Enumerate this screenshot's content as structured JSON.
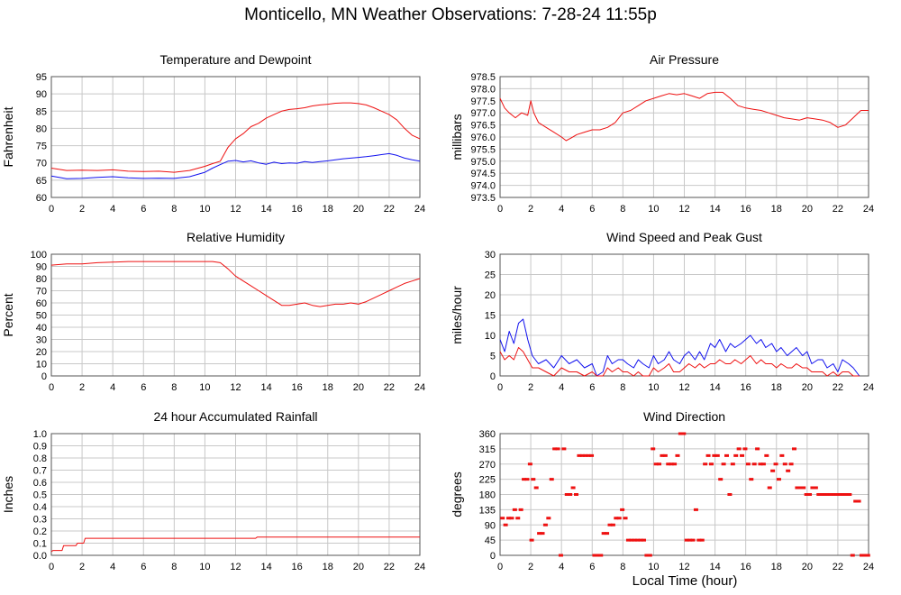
{
  "page": {
    "title": "Monticello, MN Weather Observations: 7-28-24 11:55p",
    "x_axis_label": "Local Time (hour)"
  },
  "colors": {
    "red": "#ee1111",
    "blue": "#1111ee",
    "grid": "#c8c8c8",
    "frame": "#555555"
  },
  "chart_data": [
    {
      "id": "temp",
      "type": "line",
      "title": "Temperature and Dewpoint",
      "xlabel": "",
      "ylabel": "Fahrenheit",
      "xlim": [
        0,
        24
      ],
      "ylim": [
        60,
        95
      ],
      "yticks": [
        60,
        65,
        70,
        75,
        80,
        85,
        90,
        95
      ],
      "xticks": [
        0,
        2,
        4,
        6,
        8,
        10,
        12,
        14,
        16,
        18,
        20,
        22,
        24
      ],
      "series": [
        {
          "color": "red",
          "x": [
            0,
            1,
            2,
            3,
            4,
            5,
            6,
            7,
            8,
            9,
            10,
            10.5,
            11,
            11.5,
            12,
            12.5,
            13,
            13.5,
            14,
            14.5,
            15,
            15.5,
            16,
            16.5,
            17,
            17.5,
            18,
            18.5,
            19,
            19.5,
            20,
            20.5,
            21,
            21.5,
            22,
            22.5,
            23,
            23.5,
            24
          ],
          "y": [
            68.5,
            67.8,
            67.9,
            67.8,
            68,
            67.6,
            67.5,
            67.6,
            67.3,
            67.8,
            69,
            69.8,
            70.5,
            74.5,
            77,
            78.5,
            80.5,
            81.5,
            83,
            84,
            85,
            85.5,
            85.7,
            86,
            86.5,
            86.8,
            87,
            87.3,
            87.4,
            87.4,
            87.2,
            86.8,
            86,
            85,
            84,
            82.5,
            80,
            78,
            77
          ]
        },
        {
          "color": "blue",
          "x": [
            0,
            1,
            2,
            3,
            4,
            5,
            6,
            7,
            8,
            9,
            10,
            10.5,
            11,
            11.5,
            12,
            12.5,
            13,
            13.5,
            14,
            14.5,
            15,
            15.5,
            16,
            16.5,
            17,
            17.5,
            18,
            18.5,
            19,
            19.5,
            20,
            20.5,
            21,
            21.5,
            22,
            22.5,
            23,
            23.5,
            24
          ],
          "y": [
            66.2,
            65.4,
            65.5,
            65.8,
            66,
            65.7,
            65.5,
            65.6,
            65.5,
            66,
            67.3,
            68.5,
            69.5,
            70.5,
            70.7,
            70.3,
            70.6,
            70,
            69.6,
            70.2,
            69.8,
            70,
            69.9,
            70.4,
            70.1,
            70.4,
            70.6,
            70.9,
            71.2,
            71.4,
            71.6,
            71.8,
            72.1,
            72.4,
            72.7,
            72.2,
            71.4,
            70.9,
            70.5
          ]
        }
      ]
    },
    {
      "id": "pressure",
      "type": "line",
      "title": "Air Pressure",
      "xlabel": "",
      "ylabel": "millibars",
      "xlim": [
        0,
        24
      ],
      "ylim": [
        973.5,
        978.5
      ],
      "yticks": [
        973.5,
        974.0,
        974.5,
        975.0,
        975.5,
        976.0,
        976.5,
        977.0,
        977.5,
        978.0,
        978.5
      ],
      "xticks": [
        0,
        2,
        4,
        6,
        8,
        10,
        12,
        14,
        16,
        18,
        20,
        22,
        24
      ],
      "series": [
        {
          "color": "red",
          "x": [
            0,
            0.3,
            0.6,
            1,
            1.4,
            1.8,
            2,
            2.2,
            2.5,
            3,
            3.5,
            4,
            4.3,
            4.6,
            5,
            5.5,
            6,
            6.5,
            7,
            7.5,
            8,
            8.5,
            9,
            9.5,
            10,
            10.5,
            11,
            11.5,
            12,
            12.5,
            13,
            13.5,
            14,
            14.5,
            15,
            15.5,
            16,
            16.5,
            17,
            17.5,
            18,
            18.5,
            19,
            19.5,
            20,
            20.5,
            21,
            21.5,
            22,
            22.5,
            23,
            23.5,
            24
          ],
          "y": [
            977.6,
            977.2,
            977.0,
            976.8,
            977.0,
            976.9,
            977.5,
            977.0,
            976.6,
            976.4,
            976.2,
            976.0,
            975.85,
            975.95,
            976.1,
            976.2,
            976.3,
            976.3,
            976.4,
            976.6,
            977.0,
            977.1,
            977.3,
            977.5,
            977.6,
            977.7,
            977.8,
            977.75,
            977.8,
            977.7,
            977.6,
            977.8,
            977.85,
            977.85,
            977.6,
            977.3,
            977.2,
            977.15,
            977.1,
            977.0,
            976.9,
            976.8,
            976.75,
            976.7,
            976.8,
            976.75,
            976.7,
            976.6,
            976.4,
            976.5,
            976.8,
            977.1,
            977.1
          ]
        }
      ]
    },
    {
      "id": "humidity",
      "type": "line",
      "title": "Relative Humidity",
      "xlabel": "",
      "ylabel": "Percent",
      "xlim": [
        0,
        24
      ],
      "ylim": [
        0,
        100
      ],
      "yticks": [
        0,
        10,
        20,
        30,
        40,
        50,
        60,
        70,
        80,
        90,
        100
      ],
      "xticks": [
        0,
        2,
        4,
        6,
        8,
        10,
        12,
        14,
        16,
        18,
        20,
        22,
        24
      ],
      "series": [
        {
          "color": "red",
          "x": [
            0,
            1,
            2,
            3,
            4,
            5,
            6,
            7,
            8,
            9,
            10,
            10.5,
            11,
            11.5,
            12,
            12.5,
            13,
            13.5,
            14,
            14.5,
            15,
            15.5,
            16,
            16.5,
            17,
            17.5,
            18,
            18.5,
            19,
            19.5,
            20,
            20.5,
            21,
            21.5,
            22,
            22.5,
            23,
            23.5,
            24
          ],
          "y": [
            91,
            92,
            92,
            93,
            93.5,
            94,
            94,
            94,
            94,
            94,
            94,
            94,
            93,
            88,
            82,
            78,
            74,
            70,
            66,
            62,
            58,
            58,
            59,
            60,
            58,
            57,
            58,
            59,
            59,
            60,
            59,
            61,
            64,
            67,
            70,
            73,
            76,
            78,
            80
          ]
        }
      ]
    },
    {
      "id": "wind",
      "type": "line",
      "title": "Wind Speed and Peak Gust",
      "xlabel": "",
      "ylabel": "miles/hour",
      "xlim": [
        0,
        24
      ],
      "ylim": [
        0,
        30
      ],
      "yticks": [
        0,
        5,
        10,
        15,
        20,
        25,
        30
      ],
      "xticks": [
        0,
        2,
        4,
        6,
        8,
        10,
        12,
        14,
        16,
        18,
        20,
        22,
        24
      ],
      "series": [
        {
          "color": "blue",
          "x": [
            0,
            0.3,
            0.6,
            0.9,
            1.2,
            1.5,
            1.8,
            2.1,
            2.5,
            3,
            3.5,
            4,
            4.5,
            5,
            5.5,
            6,
            6.3,
            6.7,
            7,
            7.3,
            7.7,
            8,
            8.3,
            8.7,
            9,
            9.3,
            9.7,
            10,
            10.3,
            10.7,
            11,
            11.3,
            11.7,
            12,
            12.3,
            12.7,
            13,
            13.3,
            13.7,
            14,
            14.3,
            14.7,
            15,
            15.3,
            15.7,
            16,
            16.3,
            16.7,
            17,
            17.3,
            17.7,
            18,
            18.3,
            18.7,
            19,
            19.3,
            19.7,
            20,
            20.3,
            20.7,
            21,
            21.3,
            21.7,
            22,
            22.3,
            22.7,
            23,
            23.4
          ],
          "y": [
            9,
            6,
            11,
            8,
            13,
            14,
            9,
            5,
            3,
            4,
            2,
            5,
            3,
            4,
            2,
            3,
            0,
            1,
            5,
            3,
            4,
            4,
            3,
            2,
            4,
            3,
            2,
            5,
            3,
            4,
            6,
            4,
            3,
            5,
            6,
            4,
            6,
            4,
            8,
            7,
            9,
            6,
            8,
            7,
            8,
            9,
            10,
            8,
            9,
            7,
            8,
            6,
            7,
            5,
            6,
            7,
            5,
            6,
            3,
            4,
            4,
            2,
            3,
            1,
            4,
            3,
            2,
            0
          ]
        },
        {
          "color": "red",
          "x": [
            0,
            0.3,
            0.6,
            0.9,
            1.2,
            1.5,
            1.8,
            2.1,
            2.5,
            3,
            3.5,
            4,
            4.5,
            5,
            5.5,
            6,
            6.3,
            6.7,
            7,
            7.3,
            7.7,
            8,
            8.3,
            8.7,
            9,
            9.3,
            9.7,
            10,
            10.3,
            10.7,
            11,
            11.3,
            11.7,
            12,
            12.3,
            12.7,
            13,
            13.3,
            13.7,
            14,
            14.3,
            14.7,
            15,
            15.3,
            15.7,
            16,
            16.3,
            16.7,
            17,
            17.3,
            17.7,
            18,
            18.3,
            18.7,
            19,
            19.3,
            19.7,
            20,
            20.3,
            20.7,
            21,
            21.3,
            21.7,
            22,
            22.3,
            22.7,
            23,
            23.4
          ],
          "y": [
            6,
            4,
            5,
            4,
            7,
            6,
            4,
            2,
            2,
            1,
            0,
            2,
            1,
            1,
            0,
            1,
            0,
            0,
            2,
            1,
            2,
            1,
            1,
            0,
            1,
            0,
            0,
            2,
            1,
            2,
            3,
            1,
            1,
            2,
            3,
            2,
            3,
            2,
            3,
            3,
            4,
            3,
            3,
            4,
            3,
            4,
            5,
            3,
            4,
            3,
            3,
            2,
            3,
            2,
            2,
            3,
            2,
            2,
            1,
            1,
            1,
            0,
            1,
            0,
            1,
            1,
            0,
            0
          ]
        }
      ]
    },
    {
      "id": "rain",
      "type": "line",
      "title": "24 hour Accumulated Rainfall",
      "xlabel": "",
      "ylabel": "Inches",
      "xlim": [
        0,
        24
      ],
      "ylim": [
        0,
        1.0
      ],
      "yticks": [
        0.0,
        0.1,
        0.2,
        0.3,
        0.4,
        0.5,
        0.6,
        0.7,
        0.8,
        0.9,
        1.0
      ],
      "xticks": [
        0,
        2,
        4,
        6,
        8,
        10,
        12,
        14,
        16,
        18,
        20,
        22,
        24
      ],
      "series": [
        {
          "color": "red",
          "x": [
            0,
            0.1,
            0.7,
            0.8,
            1.6,
            1.7,
            2.1,
            2.2,
            13.3,
            13.4,
            24
          ],
          "y": [
            0.03,
            0.04,
            0.04,
            0.08,
            0.08,
            0.1,
            0.1,
            0.14,
            0.14,
            0.15,
            0.15
          ]
        }
      ]
    },
    {
      "id": "direction",
      "type": "scatter",
      "title": "Wind Direction",
      "xlabel": "Local Time (hour)",
      "ylabel": "degrees",
      "xlim": [
        0,
        24
      ],
      "ylim": [
        0,
        360
      ],
      "yticks": [
        0,
        45,
        90,
        135,
        180,
        225,
        270,
        315,
        360
      ],
      "xticks": [
        0,
        2,
        4,
        6,
        8,
        10,
        12,
        14,
        16,
        18,
        20,
        22,
        24
      ],
      "series": [
        {
          "color": "red",
          "x": [
            0.1,
            0.3,
            0.5,
            0.7,
            0.9,
            1.1,
            1.3,
            1.5,
            1.7,
            1.9,
            2.0,
            2.1,
            2.3,
            2.5,
            2.7,
            2.9,
            3.1,
            3.3,
            3.5,
            3.7,
            3.9,
            4.1,
            4.3,
            4.5,
            4.7,
            4.9,
            5.1,
            5.3,
            5.5,
            5.7,
            5.9,
            6.1,
            6.3,
            6.5,
            6.7,
            6.9,
            7.1,
            7.3,
            7.5,
            7.7,
            7.9,
            8.1,
            8.3,
            8.5,
            8.7,
            8.9,
            9.1,
            9.3,
            9.5,
            9.7,
            9.9,
            10.1,
            10.3,
            10.5,
            10.7,
            10.9,
            11.1,
            11.3,
            11.5,
            11.7,
            11.9,
            12.1,
            12.3,
            12.5,
            12.7,
            12.9,
            13.1,
            13.3,
            13.5,
            13.7,
            13.9,
            14.1,
            14.3,
            14.5,
            14.7,
            14.9,
            15.1,
            15.3,
            15.5,
            15.7,
            15.9,
            16.1,
            16.3,
            16.5,
            16.7,
            16.9,
            17.1,
            17.3,
            17.5,
            17.7,
            17.9,
            18.1,
            18.3,
            18.5,
            18.7,
            18.9,
            19.1,
            19.3,
            19.5,
            19.7,
            19.9,
            20.1,
            20.3,
            20.5,
            20.7,
            20.9,
            21.1,
            21.3,
            21.5,
            21.7,
            21.9,
            22.1,
            22.3,
            22.5,
            22.7,
            22.9,
            23.1,
            23.3,
            23.5,
            23.7,
            23.9
          ],
          "y": [
            110,
            90,
            110,
            110,
            135,
            110,
            135,
            225,
            225,
            270,
            45,
            225,
            200,
            65,
            65,
            90,
            110,
            225,
            315,
            315,
            0,
            315,
            180,
            180,
            200,
            180,
            295,
            295,
            295,
            295,
            295,
            0,
            0,
            0,
            65,
            65,
            90,
            90,
            110,
            110,
            135,
            110,
            45,
            45,
            45,
            45,
            45,
            45,
            0,
            0,
            315,
            270,
            270,
            295,
            295,
            270,
            270,
            270,
            295,
            360,
            360,
            45,
            45,
            45,
            135,
            45,
            45,
            270,
            295,
            270,
            295,
            295,
            225,
            270,
            295,
            180,
            270,
            295,
            315,
            295,
            315,
            270,
            225,
            270,
            315,
            270,
            270,
            295,
            200,
            250,
            270,
            225,
            295,
            270,
            250,
            270,
            315,
            200,
            200,
            200,
            180,
            180,
            200,
            200,
            180,
            180,
            180,
            180,
            180,
            180,
            180,
            180,
            180,
            180,
            180,
            0,
            160,
            160,
            0,
            0,
            0
          ]
        }
      ]
    }
  ]
}
